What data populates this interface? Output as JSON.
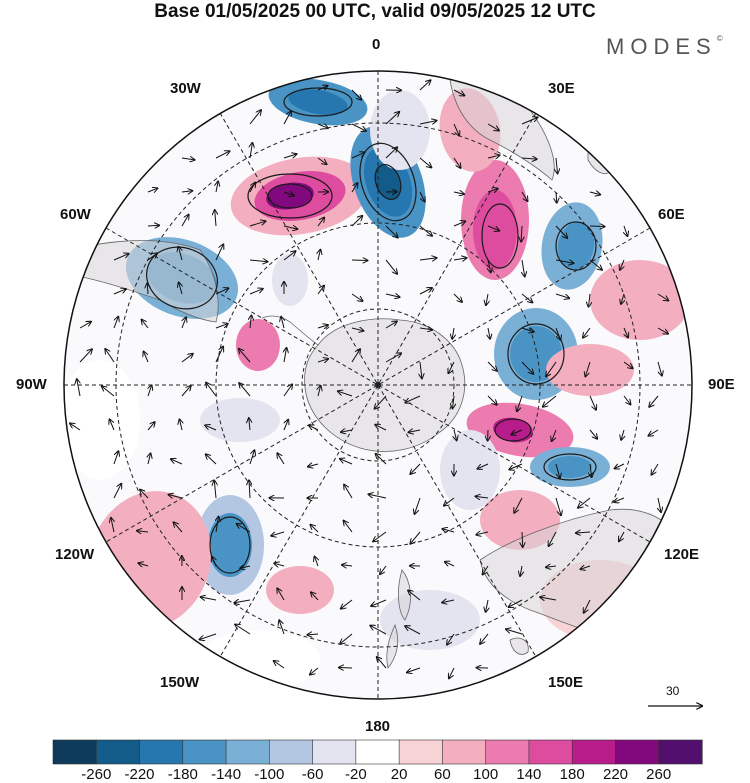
{
  "title": "Base 01/05/2025 00 UTC, valid 09/05/2025 12 UTC",
  "brand": "MODES",
  "brand_mark": "©",
  "map": {
    "projection": "south-polar-stereographic",
    "longitude_labels": {
      "top": "0",
      "bottom": "180",
      "left": "90W",
      "right": "90E",
      "upper_left_1": "30W",
      "upper_left_2": "60W",
      "upper_right_1": "30E",
      "upper_right_2": "60E",
      "lower_left_1": "120W",
      "lower_left_2": "150W",
      "lower_right_1": "120E",
      "lower_right_2": "150E"
    },
    "positive_color": "#e0508c",
    "negative_color": "#2f73a8",
    "land_color": "#d8d8d8"
  },
  "vector_scale": {
    "label": "30"
  },
  "colorbar": {
    "ticks": [
      "-260",
      "-220",
      "-180",
      "-140",
      "-100",
      "-60",
      "-20",
      "20",
      "60",
      "100",
      "140",
      "180",
      "220",
      "260"
    ],
    "colors": [
      "#0d3a5a",
      "#135c8a",
      "#2677b0",
      "#4a94c5",
      "#7aafd6",
      "#b3c6e2",
      "#e3e4f0",
      "#ffffff",
      "#f7d3d6",
      "#f3aebf",
      "#ec7cb0",
      "#dd4c9f",
      "#b81c8a",
      "#82087d",
      "#520f6e"
    ]
  }
}
